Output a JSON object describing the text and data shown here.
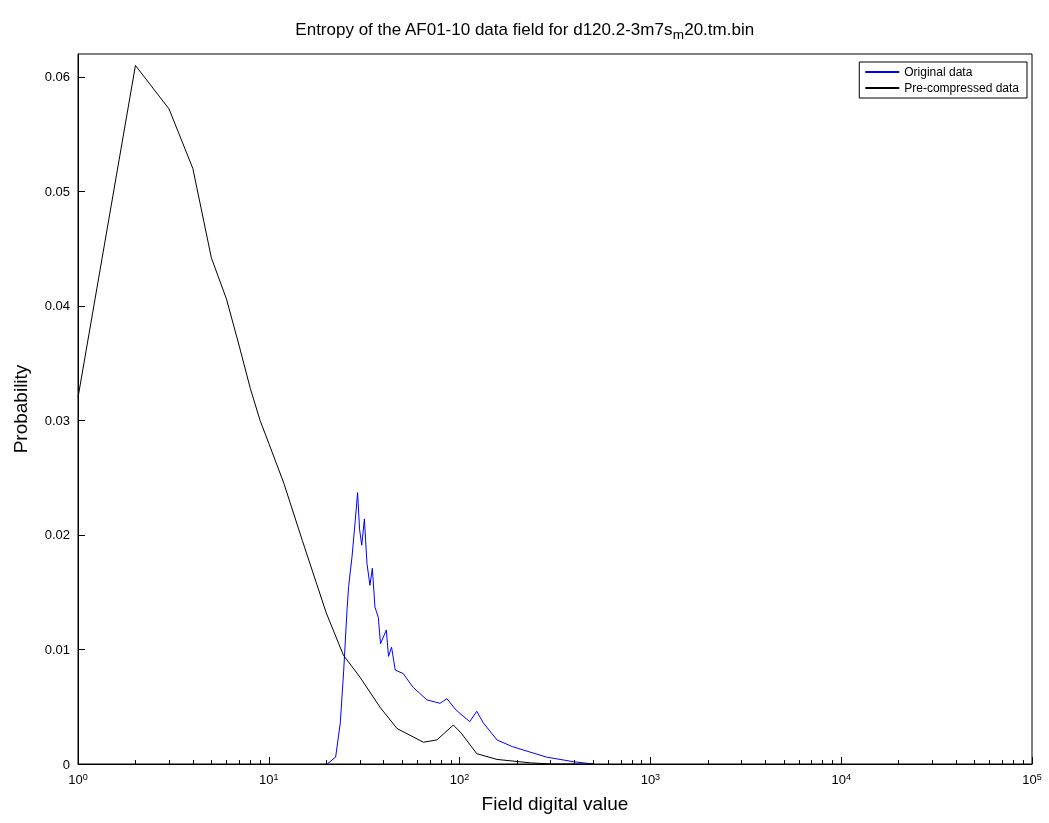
{
  "chart_data": {
    "type": "line",
    "title": "Entropy of the AF01-10 data field for d120.2-3m7s$_{m}$20.tm.bin",
    "xlabel": "Field digital value",
    "ylabel": "Probability",
    "log": "x",
    "grid": false,
    "legend": "top right",
    "marker": "none",
    "line_style": "solid",
    "xlim": [
      1,
      100000
    ],
    "xticks": [
      {
        "value": 1,
        "label": "10$^{0}$"
      },
      {
        "value": 10,
        "label": "10$^{1}$"
      },
      {
        "value": 100,
        "label": "10$^{2}$"
      },
      {
        "value": 1000,
        "label": "10$^{3}$"
      },
      {
        "value": 10000,
        "label": "10$^{4}$"
      },
      {
        "value": 100000,
        "label": "10$^{5}$"
      }
    ],
    "ylim": [
      0,
      0.062
    ],
    "yticks": [
      0,
      0.01,
      0.02,
      0.03,
      0.04,
      0.05,
      0.06
    ],
    "series": [
      {
        "name": "Original data",
        "color": "#0000ff",
        "x": [
          20.2,
          22.4,
          23.7,
          24.7,
          25.7,
          26.2,
          27.3,
          28.4,
          29.2,
          29.9,
          30.7,
          31.7,
          32.7,
          33.9,
          34.9,
          36,
          37.5,
          38.5,
          41.3,
          42.4,
          44,
          46,
          50.6,
          57,
          67.4,
          79,
          85.8,
          96,
          113,
          123,
          133,
          157,
          190,
          286,
          395,
          500
        ],
        "values": [
          0,
          0.0006,
          0.0036,
          0.0082,
          0.0134,
          0.0155,
          0.0181,
          0.0213,
          0.0237,
          0.0205,
          0.0191,
          0.0214,
          0.0175,
          0.0156,
          0.0171,
          0.0137,
          0.0128,
          0.0105,
          0.0117,
          0.0094,
          0.0102,
          0.0082,
          0.0079,
          0.0067,
          0.0056,
          0.0053,
          0.0057,
          0.0047,
          0.0037,
          0.0046,
          0.0036,
          0.0021,
          0.0015,
          0.0006,
          0.0002,
          0
        ]
      },
      {
        "name": "Pre-compressed data",
        "color": "#000000",
        "x": [
          1,
          2,
          3,
          4,
          5,
          6,
          7,
          8,
          9,
          10,
          12,
          15,
          20,
          24.6,
          30,
          38.5,
          47,
          64.6,
          76,
          92.7,
          102,
          123,
          157,
          235,
          300,
          500
        ],
        "values": [
          0.032,
          0.061,
          0.0572,
          0.052,
          0.0442,
          0.0406,
          0.0365,
          0.0328,
          0.03,
          0.028,
          0.0245,
          0.0195,
          0.0132,
          0.0095,
          0.0076,
          0.0049,
          0.0031,
          0.0019,
          0.0021,
          0.0034,
          0.0027,
          0.0009,
          0.0004,
          0.0001,
          0,
          0
        ]
      }
    ]
  }
}
